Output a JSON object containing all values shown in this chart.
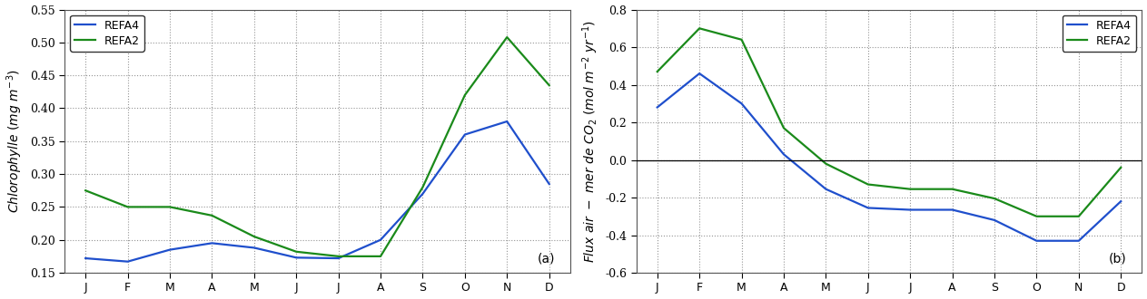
{
  "months": [
    "J",
    "F",
    "M",
    "A",
    "M",
    "J",
    "J",
    "A",
    "S",
    "O",
    "N",
    "D"
  ],
  "chlo_refa4": [
    0.172,
    0.167,
    0.185,
    0.195,
    0.188,
    0.173,
    0.172,
    0.2,
    0.27,
    0.36,
    0.38,
    0.285
  ],
  "chlo_refa2": [
    0.275,
    0.25,
    0.25,
    0.237,
    0.205,
    0.182,
    0.175,
    0.175,
    0.28,
    0.42,
    0.508,
    0.435
  ],
  "flux_refa4": [
    0.28,
    0.46,
    0.3,
    0.03,
    -0.155,
    -0.255,
    -0.265,
    -0.265,
    -0.32,
    -0.43,
    -0.43,
    -0.22
  ],
  "flux_refa2": [
    0.47,
    0.7,
    0.64,
    0.17,
    -0.02,
    -0.13,
    -0.155,
    -0.155,
    -0.205,
    -0.3,
    -0.3,
    -0.04
  ],
  "chlo_ylim": [
    0.15,
    0.55
  ],
  "chlo_yticks": [
    0.15,
    0.2,
    0.25,
    0.3,
    0.35,
    0.4,
    0.45,
    0.5,
    0.55
  ],
  "flux_ylim": [
    -0.6,
    0.8
  ],
  "flux_yticks": [
    -0.6,
    -0.4,
    -0.2,
    0.0,
    0.2,
    0.4,
    0.6,
    0.8
  ],
  "color_refa4": "#1f4fcc",
  "color_refa2": "#1a8a1a",
  "linewidth": 1.6,
  "bg_color": "#ffffff",
  "grid_color": "#888888",
  "label_refa4": "REFA4",
  "label_refa2": "REFA2",
  "panel_a": "(a)",
  "panel_b": "(b)"
}
